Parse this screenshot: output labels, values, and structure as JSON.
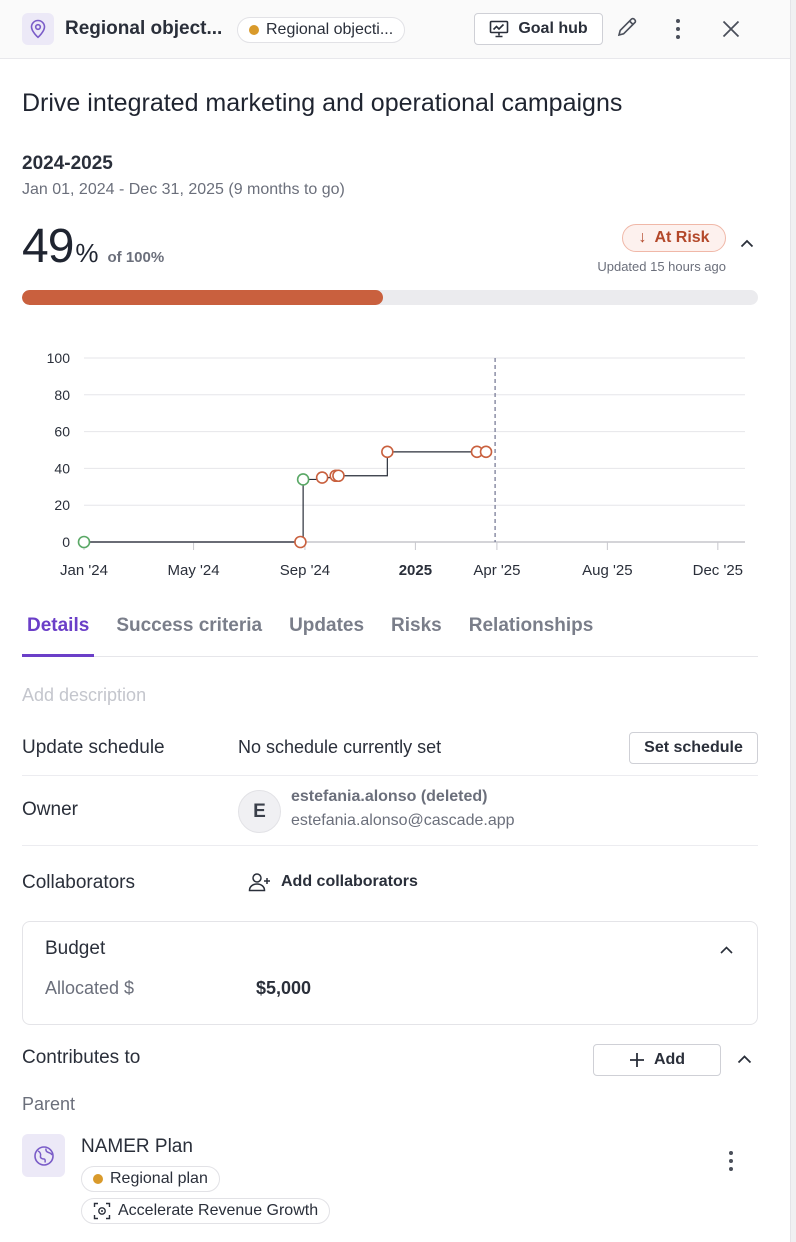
{
  "header": {
    "title": "Regional object...",
    "type_badge": "Regional objecti...",
    "goal_hub_label": "Goal hub"
  },
  "goal": {
    "title": "Drive integrated marketing and operational campaigns",
    "period": "2024-2025",
    "dates": "Jan 01, 2024 - Dec 31, 2025 (9 months to go)",
    "progress_value": "49",
    "progress_unit": "%",
    "progress_target": "of 100%",
    "progress_fraction": 0.49,
    "status": "At Risk",
    "status_arrow": "↓",
    "updated": "Updated 15 hours ago",
    "colors": {
      "progress": "#c9603e",
      "accent": "#6b3fc8",
      "on_track": "#5aa866",
      "at_risk": "#c9603e"
    }
  },
  "chart_data": {
    "type": "line",
    "x_ticks": [
      "Jan '24",
      "May '24",
      "Sep '24",
      "2025",
      "Apr '25",
      "Aug '25",
      "Dec '25"
    ],
    "x_tick_values": [
      "2024-01-01",
      "2024-05-01",
      "2024-09-01",
      "2025-01-01",
      "2025-04-01",
      "2025-08-01",
      "2025-12-01"
    ],
    "y_ticks": [
      0,
      20,
      40,
      60,
      80,
      100
    ],
    "xlim": [
      "2024-01-01",
      "2025-12-31"
    ],
    "ylim": [
      0,
      100
    ],
    "today": "2025-03-30",
    "step_line": true,
    "grid": true,
    "points": [
      {
        "date": "2024-01-01",
        "value": 0,
        "status": "on-track"
      },
      {
        "date": "2024-08-27",
        "value": 0,
        "status": "at-risk"
      },
      {
        "date": "2024-08-30",
        "value": 34,
        "status": "on-track"
      },
      {
        "date": "2024-09-20",
        "value": 35,
        "status": "at-risk"
      },
      {
        "date": "2024-10-05",
        "value": 36,
        "status": "at-risk"
      },
      {
        "date": "2024-10-08",
        "value": 36,
        "status": "at-risk"
      },
      {
        "date": "2024-12-01",
        "value": 49,
        "status": "at-risk"
      },
      {
        "date": "2025-03-10",
        "value": 49,
        "status": "at-risk"
      },
      {
        "date": "2025-03-20",
        "value": 49,
        "status": "at-risk"
      }
    ]
  },
  "tabs": [
    {
      "label": "Details",
      "active": true
    },
    {
      "label": "Success criteria",
      "active": false
    },
    {
      "label": "Updates",
      "active": false
    },
    {
      "label": "Risks",
      "active": false
    },
    {
      "label": "Relationships",
      "active": false
    }
  ],
  "details": {
    "description_placeholder": "Add description",
    "schedule_label": "Update schedule",
    "schedule_value": "No schedule currently set",
    "schedule_button": "Set schedule",
    "owner_label": "Owner",
    "owner_initial": "E",
    "owner_name": "estefania.alonso (deleted)",
    "owner_email": "estefania.alonso@cascade.app",
    "collaborators_label": "Collaborators",
    "add_collaborators": "Add collaborators"
  },
  "budget": {
    "title": "Budget",
    "allocated_label": "Allocated $",
    "allocated_value": "$5,000"
  },
  "contributes": {
    "title": "Contributes to",
    "add_label": "Add",
    "parent_label": "Parent",
    "parent_name": "NAMER Plan",
    "parent_type": "Regional plan",
    "parent_focus": "Accelerate Revenue Growth"
  }
}
